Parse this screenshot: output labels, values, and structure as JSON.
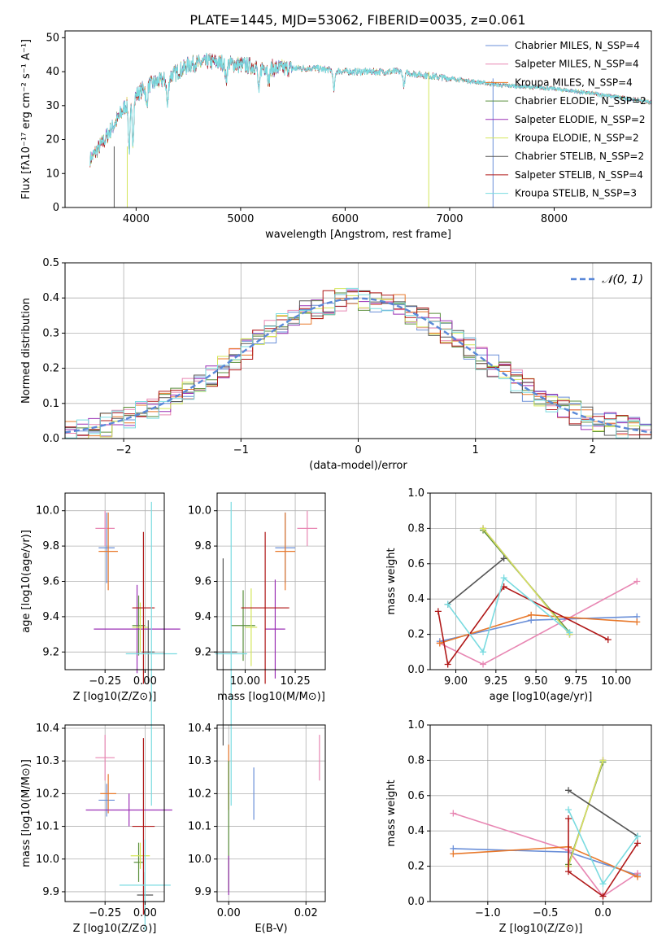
{
  "figure_title": "PLATE=1445, MJD=53062, FIBERID=0035, z=0.061",
  "series_colors": [
    "#6a8fd8",
    "#e887b3",
    "#e8782a",
    "#5a8f3c",
    "#9b30b5",
    "#d4e65a",
    "#555555",
    "#b01818",
    "#7adbe0"
  ],
  "chart_data": [
    {
      "type": "line",
      "title": "PLATE=1445, MJD=53062, FIBERID=0035, z=0.061",
      "xlabel": "wavelength [Angstrom, rest frame]",
      "ylabel": "Flux [fλ10⁻¹⁷ erg cm⁻² s⁻¹ A⁻¹]",
      "xlim": [
        3320,
        8930
      ],
      "ylim": [
        0,
        52
      ],
      "xticks": [
        4000,
        5000,
        6000,
        7000,
        8000
      ],
      "yticks": [
        0,
        10,
        20,
        30,
        40,
        50
      ],
      "grid": false,
      "legend": "top-right",
      "continuum_points": {
        "x": [
          3560,
          3700,
          3900,
          4100,
          4300,
          4500,
          4700,
          5000,
          5300,
          5700,
          6000,
          6500,
          7000,
          7500,
          8000,
          8500,
          8930
        ],
        "y": [
          14,
          20,
          30,
          36,
          38,
          42,
          43,
          42,
          41,
          41,
          40,
          40,
          38,
          36,
          35,
          33,
          31
        ]
      },
      "legend_entries": [
        "Chabrier MILES, N_SSP=4",
        "Salpeter MILES, N_SSP=4",
        "Kroupa MILES, N_SSP=4",
        "Chabrier ELODIE, N_SSP=2",
        "Salpeter ELODIE, N_SSP=2",
        "Kroupa ELODIE, N_SSP=2",
        "Chabrier STELIB, N_SSP=2",
        "Salpeter STELIB, N_SSP=4",
        "Kroupa STELIB, N_SSP=3"
      ]
    },
    {
      "type": "histogram",
      "xlabel": "(data-model)/error",
      "ylabel": "Normed distribution",
      "xlim": [
        -2.5,
        2.5
      ],
      "ylim": [
        0,
        0.5
      ],
      "xticks": [
        -2,
        -1,
        0,
        1,
        2
      ],
      "yticks": [
        0.0,
        0.1,
        0.2,
        0.3,
        0.4,
        0.5
      ],
      "grid": true,
      "legend": "top-right",
      "reference_curve": {
        "name": "N(0,1)",
        "mean": 0,
        "sigma": 1
      },
      "bin_width": 0.1
    },
    {
      "type": "scatter",
      "xlabel": "Z [log10(Z/Z⊙)]",
      "ylabel": "age  [log10(age/yr)]",
      "xlim": [
        -0.5,
        0.12
      ],
      "ylim": [
        9.1,
        10.1
      ],
      "xticks": [
        -0.25,
        0.0
      ],
      "yticks": [
        9.2,
        9.4,
        9.6,
        9.8,
        10.0
      ],
      "grid": true,
      "points": [
        {
          "x": -0.24,
          "y": 9.79,
          "xerr": 0.05,
          "yerr": 0.2
        },
        {
          "x": -0.25,
          "y": 9.9,
          "xerr": 0.06,
          "yerr": 0.1
        },
        {
          "x": -0.23,
          "y": 9.77,
          "xerr": 0.06,
          "yerr": 0.22
        },
        {
          "x": -0.04,
          "y": 9.35,
          "xerr": 0.04,
          "yerr": 0.17
        },
        {
          "x": -0.05,
          "y": 9.33,
          "xerr": 0.27,
          "yerr": 0.25
        },
        {
          "x": -0.03,
          "y": 9.34,
          "xerr": 0.05,
          "yerr": 0.14
        },
        {
          "x": 0.02,
          "y": 9.2,
          "xerr": 0.04,
          "yerr": 0.18
        },
        {
          "x": -0.01,
          "y": 9.45,
          "xerr": 0.07,
          "yerr": 0.43
        },
        {
          "x": 0.04,
          "y": 9.19,
          "xerr": 0.16,
          "yerr": 0.86
        }
      ]
    },
    {
      "type": "scatter",
      "xlabel": "mass [log10(M/M⊙)]",
      "ylabel": "",
      "xlim": [
        9.86,
        10.4
      ],
      "ylim": [
        9.1,
        10.1
      ],
      "xticks": [
        10.0,
        10.25
      ],
      "yticks": [
        9.2,
        9.4,
        9.6,
        9.8,
        10.0
      ],
      "grid": true,
      "points": [
        {
          "x": 10.2,
          "y": 9.79,
          "xerr": 0.05,
          "yerr": 0.2
        },
        {
          "x": 10.31,
          "y": 9.9,
          "xerr": 0.05,
          "yerr": 0.1
        },
        {
          "x": 10.2,
          "y": 9.77,
          "xerr": 0.05,
          "yerr": 0.22
        },
        {
          "x": 9.99,
          "y": 9.35,
          "xerr": 0.06,
          "yerr": 0.2
        },
        {
          "x": 10.15,
          "y": 9.33,
          "xerr": 0.05,
          "yerr": 0.28
        },
        {
          "x": 10.03,
          "y": 9.34,
          "xerr": 0.03,
          "yerr": 0.22
        },
        {
          "x": 9.89,
          "y": 9.2,
          "xerr": 0.07,
          "yerr": 0.53
        },
        {
          "x": 10.1,
          "y": 9.45,
          "xerr": 0.12,
          "yerr": 0.43
        },
        {
          "x": 9.93,
          "y": 9.19,
          "xerr": 0.08,
          "yerr": 0.86
        }
      ]
    },
    {
      "type": "line",
      "xlabel": "age  [log10(age/yr)]",
      "ylabel": "mass weight",
      "xlim": [
        8.84,
        10.22
      ],
      "ylim": [
        0,
        1.0
      ],
      "xticks": [
        9.0,
        9.25,
        9.5,
        9.75,
        10.0
      ],
      "yticks": [
        0.0,
        0.2,
        0.4,
        0.6,
        0.8,
        1.0
      ],
      "grid": true,
      "series": [
        {
          "x": [
            8.9,
            9.47,
            10.13
          ],
          "y": [
            0.16,
            0.28,
            0.3
          ]
        },
        {
          "x": [
            8.9,
            9.17,
            10.13
          ],
          "y": [
            0.15,
            0.03,
            0.5
          ]
        },
        {
          "x": [
            8.9,
            9.47,
            10.13
          ],
          "y": [
            0.15,
            0.31,
            0.27
          ]
        },
        {
          "x": [
            9.17,
            9.71
          ],
          "y": [
            0.79,
            0.21
          ]
        },
        {
          "x": [
            9.17,
            9.71
          ],
          "y": [
            0.8,
            0.2
          ]
        },
        {
          "x": [
            9.17,
            9.71
          ],
          "y": [
            0.8,
            0.2
          ]
        },
        {
          "x": [
            8.95,
            9.3
          ],
          "y": [
            0.37,
            0.63
          ]
        },
        {
          "x": [
            8.89,
            8.95,
            9.3,
            9.95
          ],
          "y": [
            0.33,
            0.03,
            0.47,
            0.17
          ]
        },
        {
          "x": [
            8.95,
            9.17,
            9.3,
            9.71
          ],
          "y": [
            0.37,
            0.1,
            0.52,
            0.21
          ]
        }
      ]
    },
    {
      "type": "scatter",
      "xlabel": "Z [log10(Z/Z⊙)]",
      "ylabel": "mass [log10(M/M⊙)]",
      "xlim": [
        -0.5,
        0.12
      ],
      "ylim": [
        9.87,
        10.41
      ],
      "xticks": [
        -0.25,
        0.0
      ],
      "yticks": [
        9.9,
        10.0,
        10.1,
        10.2,
        10.3,
        10.4
      ],
      "grid": true,
      "points": [
        {
          "x": -0.24,
          "y": 10.18,
          "xerr": 0.05,
          "yerr": 0.05
        },
        {
          "x": -0.25,
          "y": 10.31,
          "xerr": 0.06,
          "yerr": 0.07
        },
        {
          "x": -0.23,
          "y": 10.2,
          "xerr": 0.05,
          "yerr": 0.06
        },
        {
          "x": -0.04,
          "y": 9.99,
          "xerr": 0.03,
          "yerr": 0.06
        },
        {
          "x": -0.1,
          "y": 10.15,
          "xerr": 0.27,
          "yerr": 0.05
        },
        {
          "x": -0.03,
          "y": 10.01,
          "xerr": 0.06,
          "yerr": 0.04
        },
        {
          "x": 0.0,
          "y": 9.89,
          "xerr": 0.05,
          "yerr": 0.07
        },
        {
          "x": -0.01,
          "y": 10.1,
          "xerr": 0.07,
          "yerr": 0.27
        },
        {
          "x": 0.0,
          "y": 9.92,
          "xerr": 0.16,
          "yerr": 0.14
        }
      ]
    },
    {
      "type": "scatter",
      "xlabel": "E(B-V)",
      "ylabel": "",
      "xlim": [
        -0.003,
        0.025
      ],
      "ylim": [
        9.87,
        10.41
      ],
      "xticks": [
        0.0,
        0.02
      ],
      "yticks": [
        9.9,
        10.0,
        10.1,
        10.2,
        10.3,
        10.4
      ],
      "grid": true,
      "points": [
        {
          "x": 0.0065,
          "y": 10.2,
          "xerr": 0,
          "yerr": 0.08
        },
        {
          "x": 0.0235,
          "y": 10.31,
          "xerr": 0,
          "yerr": 0.07
        },
        {
          "x": 0.0,
          "y": 10.25,
          "xerr": 0,
          "yerr": 0.1
        },
        {
          "x": 0.0,
          "y": 10.1,
          "xerr": 0,
          "yerr": 0.2
        },
        {
          "x": 0.0,
          "y": 9.95,
          "xerr": 0,
          "yerr": 0.06
        }
      ]
    },
    {
      "type": "line",
      "xlabel": "Z [log10(Z/Z⊙)]",
      "ylabel": "mass weight",
      "xlim": [
        -1.5,
        0.42
      ],
      "ylim": [
        0,
        1.0
      ],
      "xticks": [
        -1.0,
        -0.5,
        0.0
      ],
      "yticks": [
        0.0,
        0.2,
        0.4,
        0.6,
        0.8,
        1.0
      ],
      "grid": true,
      "series": [
        {
          "x": [
            -1.3,
            -0.3,
            0.3
          ],
          "y": [
            0.3,
            0.28,
            0.15
          ]
        },
        {
          "x": [
            -1.3,
            -0.3,
            0.0,
            0.3
          ],
          "y": [
            0.5,
            0.29,
            0.03,
            0.16
          ]
        },
        {
          "x": [
            -1.3,
            -0.3,
            0.3
          ],
          "y": [
            0.27,
            0.31,
            0.14
          ]
        },
        {
          "x": [
            -0.3,
            0.0
          ],
          "y": [
            0.21,
            0.79
          ]
        },
        {
          "x": [
            -0.3,
            0.0
          ],
          "y": [
            0.2,
            0.8
          ]
        },
        {
          "x": [
            -0.3,
            0.0
          ],
          "y": [
            0.2,
            0.8
          ]
        },
        {
          "x": [
            -0.3,
            0.3
          ],
          "y": [
            0.63,
            0.37
          ]
        },
        {
          "x": [
            -0.3,
            -0.3,
            0.0,
            0.3
          ],
          "y": [
            0.47,
            0.17,
            0.03,
            0.33
          ]
        },
        {
          "x": [
            -0.3,
            0.0,
            0.3
          ],
          "y": [
            0.52,
            0.1,
            0.37
          ]
        }
      ]
    }
  ]
}
